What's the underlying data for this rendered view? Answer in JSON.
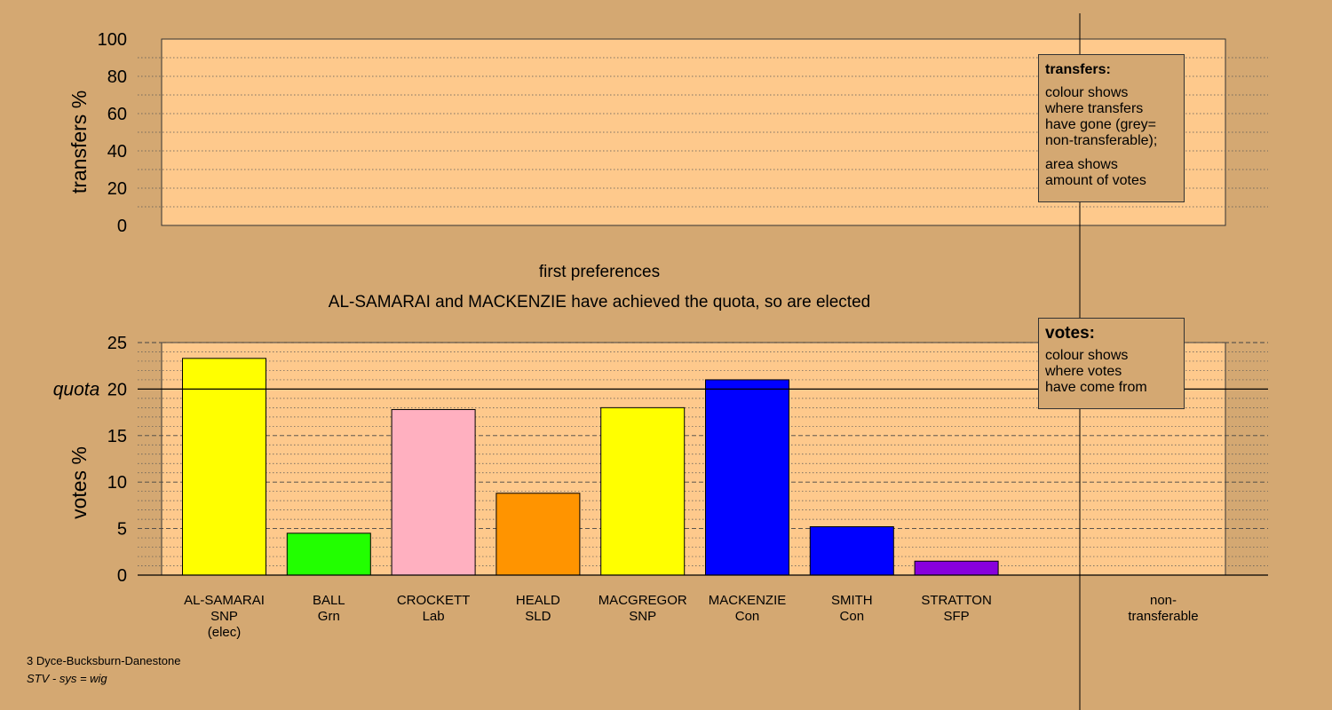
{
  "chart_data": [
    {
      "type": "bar",
      "ylabel": "transfers %",
      "ylim": [
        0,
        100
      ],
      "yticks": [
        "0",
        "20",
        "40",
        "60",
        "80",
        "100"
      ],
      "series": []
    },
    {
      "type": "bar",
      "title": "first preferences",
      "subtitle": "AL-SAMARAI and MACKENZIE have achieved the quota, so are elected",
      "ylabel": "votes %",
      "ylim": [
        0,
        25
      ],
      "yticks": [
        "0",
        "5",
        "10",
        "15",
        "20",
        "25"
      ],
      "quota_label": "quota",
      "quota_value": 20,
      "categories": [
        {
          "name": "AL-SAMARAI",
          "party": "SNP",
          "note": "(elec)"
        },
        {
          "name": "BALL",
          "party": "Grn",
          "note": ""
        },
        {
          "name": "CROCKETT",
          "party": "Lab",
          "note": ""
        },
        {
          "name": "HEALD",
          "party": "SLD",
          "note": ""
        },
        {
          "name": "MACGREGOR",
          "party": "SNP",
          "note": ""
        },
        {
          "name": "MACKENZIE",
          "party": "Con",
          "note": ""
        },
        {
          "name": "SMITH",
          "party": "Con",
          "note": ""
        },
        {
          "name": "STRATTON",
          "party": "SFP",
          "note": ""
        }
      ],
      "values": [
        23.3,
        4.5,
        17.8,
        8.8,
        18.0,
        21.0,
        5.2,
        1.5
      ],
      "colors": [
        "#ffff00",
        "#22ff00",
        "#ffb0c0",
        "#ff9400",
        "#ffff00",
        "#0000ff",
        "#0000ff",
        "#8800dd"
      ],
      "extra_category": {
        "line1": "non-",
        "line2": "transferable",
        "value": 0
      }
    }
  ],
  "legend_transfers": {
    "title": "transfers:",
    "lines1": [
      "colour shows",
      "where transfers",
      "have gone (grey=",
      "non-transferable);"
    ],
    "lines2": [
      "area shows",
      "amount of votes"
    ]
  },
  "legend_votes": {
    "title": "votes:",
    "lines": [
      "colour shows",
      "where votes",
      "have come from"
    ]
  },
  "footer": {
    "constituency": "3 Dyce-Bucksburn-Danestone",
    "system": "STV - sys = wig"
  }
}
